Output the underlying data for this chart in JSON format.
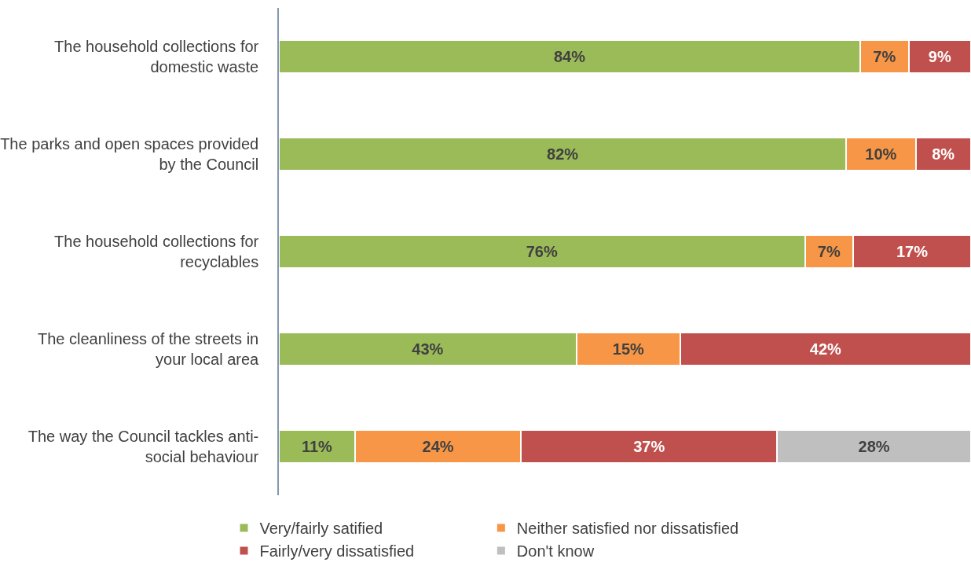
{
  "chart_data": {
    "type": "bar",
    "orientation": "horizontal",
    "stacked": true,
    "categories": [
      "The household collections for domestic waste",
      "The parks and open spaces provided by the Council",
      "The household collections for recyclables",
      "The cleanliness of the streets in your local area",
      "The way the Council tackles anti-social behaviour"
    ],
    "series": [
      {
        "name": "Very/fairly satified",
        "color": "#9bbb59",
        "values": [
          84,
          82,
          76,
          43,
          11
        ],
        "value_labels": [
          "84%",
          "82%",
          "76%",
          "43%",
          "11%"
        ]
      },
      {
        "name": "Neither satisfied nor dissatisfied",
        "color": "#f79646",
        "values": [
          7,
          10,
          7,
          15,
          24
        ],
        "value_labels": [
          "7%",
          "10%",
          "7%",
          "15%",
          "24%"
        ]
      },
      {
        "name": "Fairly/very dissatisfied",
        "color": "#c0504d",
        "values": [
          9,
          8,
          17,
          42,
          37
        ],
        "value_labels": [
          "9%",
          "8%",
          "17%",
          "42%",
          "37%"
        ]
      },
      {
        "name": "Don't know",
        "color": "#bfbfbf",
        "values": [
          null,
          null,
          null,
          null,
          28
        ],
        "value_labels": [
          null,
          null,
          null,
          null,
          "28%"
        ]
      }
    ],
    "xlim": [
      0,
      100
    ],
    "legend": "bottom"
  }
}
